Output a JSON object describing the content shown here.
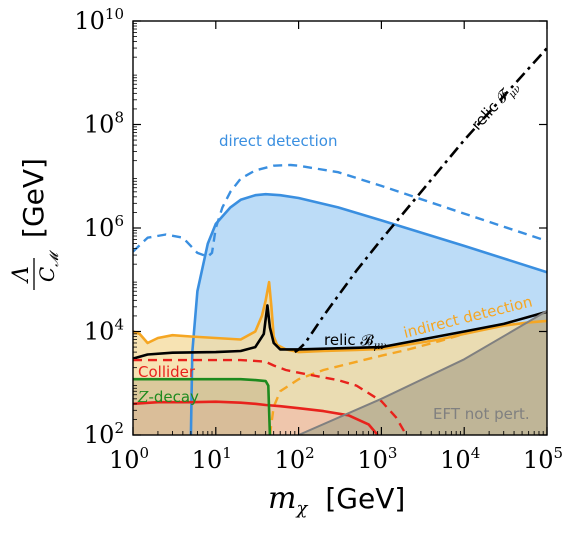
{
  "chart_data": {
    "type": "line",
    "xscale": "log",
    "yscale": "log",
    "xlim": [
      1,
      100000
    ],
    "ylim": [
      100,
      10000000000
    ],
    "xlabel_symbol": "m",
    "xlabel_sub": "χ",
    "xlabel_unit": "[GeV]",
    "ylabel_num": "Λ",
    "ylabel_den": "C",
    "ylabel_den_sub": "𝓜",
    "ylabel_unit": "[GeV]",
    "xticks": [
      {
        "value": 1,
        "base": "10",
        "exp": "0"
      },
      {
        "value": 10,
        "base": "10",
        "exp": "1"
      },
      {
        "value": 100,
        "base": "10",
        "exp": "2"
      },
      {
        "value": 1000,
        "base": "10",
        "exp": "3"
      },
      {
        "value": 10000,
        "base": "10",
        "exp": "4"
      },
      {
        "value": 100000,
        "base": "10",
        "exp": "5"
      }
    ],
    "yticks": [
      {
        "value": 100,
        "base": "10",
        "exp": "2"
      },
      {
        "value": 10000,
        "base": "10",
        "exp": "4"
      },
      {
        "value": 1000000,
        "base": "10",
        "exp": "6"
      },
      {
        "value": 100000000,
        "base": "10",
        "exp": "8"
      },
      {
        "value": 10000000000,
        "base": "10",
        "exp": "10"
      }
    ],
    "colors": {
      "direct": "#3a8fe0",
      "direct_fill": "#bcdcf7",
      "indirect": "#f5a623",
      "indirect_fill": "#f5dca0",
      "collider": "#e8221c",
      "collider_fill": "#f2b8a8",
      "zdecay": "#1e8a1e",
      "zdecay_fill": "#c8b88c",
      "eft_fill": "#b0a88e",
      "eft_line": "#808080",
      "relic": "#000000"
    },
    "annotations": {
      "direct_detection": "direct detection",
      "indirect_detection": "indirect detection",
      "collider": "Collider",
      "zdecay_sym": "Z",
      "zdecay_text": "-decay",
      "eft": "EFT not pert.",
      "relic_F": "relic 𝓕",
      "relic_F_sub": "μν",
      "relic_B": "relic 𝓑",
      "relic_B_sub": "μν"
    },
    "series": [
      {
        "name": "direct detection",
        "style": "solid",
        "x": [
          5,
          5.2,
          6,
          8,
          10,
          15,
          20,
          30,
          40,
          60,
          100,
          300,
          1000,
          10000,
          100000
        ],
        "y": [
          100,
          4000,
          60000,
          500000,
          1200000,
          2500000,
          3500000,
          4300000,
          4500000,
          4300000,
          3800000,
          2500000,
          1400000,
          450000,
          140000
        ]
      },
      {
        "name": "direct detection (projection)",
        "style": "dashed",
        "x": [
          1,
          1.5,
          2.5,
          4,
          6,
          8,
          9,
          10,
          12,
          15,
          20,
          30,
          50,
          80,
          100,
          300,
          1000,
          10000,
          100000
        ],
        "y": [
          350000,
          650000,
          750000,
          650000,
          330000,
          280000,
          330000,
          1000000,
          2500000,
          5000000,
          9000000,
          13000000,
          16000000,
          16500000,
          16000000,
          12000000,
          6500000,
          1900000,
          560000
        ]
      },
      {
        "name": "indirect detection",
        "style": "solid",
        "x": [
          1,
          1.2,
          1.5,
          2,
          3,
          5,
          10,
          20,
          30,
          36,
          40,
          44,
          47,
          50,
          55,
          70,
          100,
          200,
          500,
          1000,
          5000,
          10000,
          30000,
          60000,
          100000
        ],
        "y": [
          10000,
          9000,
          6000,
          7500,
          8500,
          8000,
          7500,
          7000,
          10000,
          20000,
          40000,
          90000,
          30000,
          8000,
          5500,
          4500,
          4000,
          4200,
          4400,
          4600,
          7000,
          9000,
          13000,
          15000,
          16000
        ]
      },
      {
        "name": "indirect detection (projection)",
        "style": "dashed",
        "x": [
          45,
          50,
          60,
          100,
          200,
          500,
          1000,
          2000,
          5000,
          10000,
          30000,
          100000
        ],
        "y": [
          100,
          350,
          700,
          1200,
          1800,
          2600,
          3400,
          4400,
          6500,
          9000,
          14000,
          24000
        ]
      },
      {
        "name": "relic F",
        "style": "dashdot",
        "x": [
          90,
          100,
          120,
          200,
          500,
          1000,
          10000,
          100000
        ],
        "y": [
          4000,
          4500,
          6000,
          20000,
          150000,
          600000,
          50000000,
          3000000000
        ]
      },
      {
        "name": "relic B",
        "style": "solid",
        "x": [
          1,
          1.5,
          3,
          10,
          20,
          30,
          38,
          42,
          45,
          50,
          60,
          100,
          1000,
          10000,
          30000,
          100000
        ],
        "y": [
          3000,
          3600,
          3900,
          4000,
          4200,
          5000,
          9000,
          32000,
          12000,
          6000,
          4500,
          4500,
          5000,
          10000,
          14000,
          24000
        ]
      },
      {
        "name": "Collider",
        "style": "solid",
        "x": [
          1,
          2,
          5,
          10,
          20,
          30,
          40,
          60,
          100,
          200,
          400,
          700,
          900
        ],
        "y": [
          400,
          430,
          430,
          440,
          420,
          400,
          380,
          360,
          330,
          290,
          240,
          160,
          100
        ]
      },
      {
        "name": "Collider (projection)",
        "style": "dashed",
        "x": [
          1,
          2,
          5,
          10,
          20,
          30,
          40,
          50,
          70,
          100,
          200,
          300,
          500,
          1000,
          1500,
          2000
        ],
        "y": [
          2800,
          2800,
          2800,
          2800,
          2800,
          2700,
          2600,
          2200,
          1800,
          1600,
          1300,
          1150,
          900,
          450,
          220,
          100
        ]
      },
      {
        "name": "Z-decay",
        "style": "solid",
        "x": [
          1,
          5,
          10,
          20,
          30,
          40,
          43,
          44,
          45
        ],
        "y": [
          1200,
          1200,
          1200,
          1200,
          1150,
          1100,
          900,
          300,
          100
        ]
      },
      {
        "name": "EFT not pert.",
        "style": "solid",
        "x": [
          100,
          1000,
          10000,
          100000
        ],
        "y": [
          100,
          500,
          2900,
          25000
        ]
      }
    ]
  }
}
